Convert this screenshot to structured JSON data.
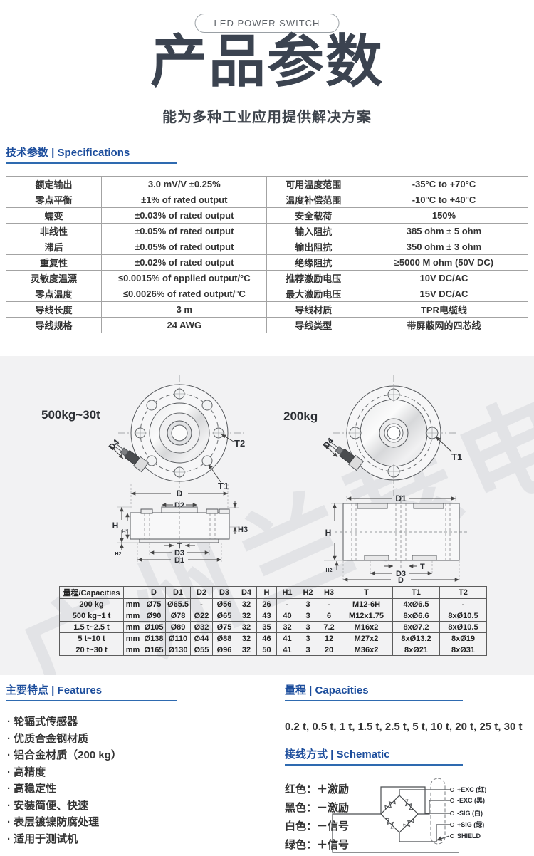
{
  "badge": "LED POWER SWITCH",
  "header": {
    "title": "产品参数",
    "subtitle": "能为多种工业应用提供解决方案"
  },
  "section_titles": {
    "specs": "技术参数 | Specifications",
    "features": "主要特点 | Features",
    "capacities": "量程 | Capacities",
    "schematic": "接线方式 | Schematic"
  },
  "spec_table": {
    "rows": [
      [
        "额定输出",
        "3.0 mV/V ±0.25%",
        "可用温度范围",
        "-35°C to +70°C"
      ],
      [
        "零点平衡",
        "±1% of rated output",
        "温度补偿范围",
        "-10°C to +40°C"
      ],
      [
        "蠕变",
        "±0.03% of rated output",
        "安全载荷",
        "150%"
      ],
      [
        "非线性",
        "±0.05% of rated output",
        "输入阻抗",
        "385 ohm ± 5 ohm"
      ],
      [
        "滞后",
        "±0.05% of rated output",
        "输出阻抗",
        "350 ohm ± 3 ohm"
      ],
      [
        "重复性",
        "±0.02% of rated output",
        "绝缘阻抗",
        "≥5000 M ohm (50V DC)"
      ],
      [
        "灵敏度温漂",
        "≤0.0015% of applied output/°C",
        "推荐激励电压",
        "10V DC/AC"
      ],
      [
        "零点温度",
        "≤0.0026% of rated output/°C",
        "最大激励电压",
        "15V DC/AC"
      ],
      [
        "导线长度",
        "3 m",
        "导线材质",
        "TPR电缆线"
      ],
      [
        "导线规格",
        "24 AWG",
        "导线类型",
        "带屏蔽网的四芯线"
      ]
    ]
  },
  "diagrams": {
    "left_range": "500kg~30t",
    "right_range": "200kg",
    "watermark": "广州兰瑟电子",
    "dims": {
      "D": "D",
      "D1": "D1",
      "D2": "D2",
      "D3": "D3",
      "D4": "D4",
      "H": "H",
      "H1": "H1",
      "H2": "H2",
      "H3": "H3",
      "T": "T",
      "T1": "T1",
      "T2": "T2"
    }
  },
  "dim_table": {
    "headers": [
      "量程/Capacities",
      "",
      "D",
      "D1",
      "D2",
      "D3",
      "D4",
      "H",
      "H1",
      "H2",
      "H3",
      "T",
      "T1",
      "T2"
    ],
    "rows": [
      [
        "200 kg",
        "mm",
        "Ø75",
        "Ø65.5",
        "-",
        "Ø56",
        "32",
        "26",
        "-",
        "3",
        "-",
        "M12-6H",
        "4xØ6.5",
        "-"
      ],
      [
        "500 kg~1 t",
        "mm",
        "Ø90",
        "Ø78",
        "Ø22",
        "Ø65",
        "32",
        "43",
        "40",
        "3",
        "6",
        "M12x1.75",
        "8xØ6.6",
        "8xØ10.5"
      ],
      [
        "1.5 t~2.5 t",
        "mm",
        "Ø105",
        "Ø89",
        "Ø32",
        "Ø75",
        "32",
        "35",
        "32",
        "3",
        "7.2",
        "M16x2",
        "8xØ7.2",
        "8xØ10.5"
      ],
      [
        "5 t~10 t",
        "mm",
        "Ø138",
        "Ø110",
        "Ø44",
        "Ø88",
        "32",
        "46",
        "41",
        "3",
        "12",
        "M27x2",
        "8xØ13.2",
        "8xØ19"
      ],
      [
        "20 t~30 t",
        "mm",
        "Ø165",
        "Ø130",
        "Ø55",
        "Ø96",
        "32",
        "50",
        "41",
        "3",
        "20",
        "M36x2",
        "8xØ21",
        "8xØ31"
      ]
    ]
  },
  "features": [
    "轮辐式传感器",
    "优质合金钢材质",
    "铝合金材质（200 kg）",
    "高精度",
    "高稳定性",
    "安装简便、快速",
    "表层镀镍防腐处理",
    "适用于测试机"
  ],
  "capacities_text": "0.2 t, 0.5 t, 1 t, 1.5 t, 2.5 t, 5 t, 10 t, 20 t, 25 t, 30 t",
  "wiring": {
    "legend": [
      "红色：＋激励",
      "黑色：－激励",
      "白色：－信号",
      "绿色：＋信号"
    ],
    "terminals": {
      "exc_pos": "+EXC (红)",
      "exc_neg": "-EXC (黑)",
      "sig_neg": "-SIG (白)",
      "sig_pos": "+SIG (绿)",
      "shield": "SHIELD"
    }
  },
  "colors": {
    "accent": "#1c4d9c",
    "underline": "#2e6ab0",
    "title": "#3b4350",
    "section_bg": "#f2f2f3"
  }
}
